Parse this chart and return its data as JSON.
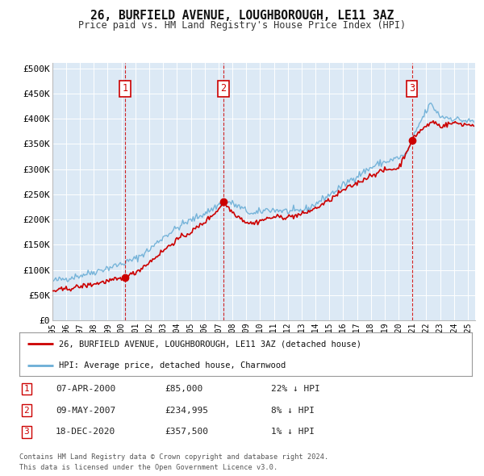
{
  "title": "26, BURFIELD AVENUE, LOUGHBOROUGH, LE11 3AZ",
  "subtitle": "Price paid vs. HM Land Registry's House Price Index (HPI)",
  "yticks": [
    0,
    50000,
    100000,
    150000,
    200000,
    250000,
    300000,
    350000,
    400000,
    450000,
    500000
  ],
  "ytick_labels": [
    "£0",
    "£50K",
    "£100K",
    "£150K",
    "£200K",
    "£250K",
    "£300K",
    "£350K",
    "£400K",
    "£450K",
    "£500K"
  ],
  "xmin": 1995.0,
  "xmax": 2025.5,
  "ymin": 0,
  "ymax": 510000,
  "background_plot": "#dce9f5",
  "background_fig": "#ffffff",
  "grid_color": "#ffffff",
  "hpi_color": "#6baed6",
  "price_color": "#cc0000",
  "annotation_box_color": "#cc0000",
  "dashed_line_color_sale": "#cc0000",
  "dashed_line_color_nosale": "#aaaacc",
  "legend_house_label": "26, BURFIELD AVENUE, LOUGHBOROUGH, LE11 3AZ (detached house)",
  "legend_hpi_label": "HPI: Average price, detached house, Charnwood",
  "transactions": [
    {
      "num": 1,
      "date": "07-APR-2000",
      "price": 85000,
      "pct": "22%",
      "dir": "↓",
      "year": 2000.27
    },
    {
      "num": 2,
      "date": "09-MAY-2007",
      "price": 234995,
      "pct": "8%",
      "dir": "↓",
      "year": 2007.36
    },
    {
      "num": 3,
      "date": "18-DEC-2020",
      "price": 357500,
      "pct": "1%",
      "dir": "↓",
      "year": 2020.96
    }
  ],
  "footer1": "Contains HM Land Registry data © Crown copyright and database right 2024.",
  "footer2": "This data is licensed under the Open Government Licence v3.0.",
  "xtick_years": [
    1995,
    1996,
    1997,
    1998,
    1999,
    2000,
    2001,
    2002,
    2003,
    2004,
    2005,
    2006,
    2007,
    2008,
    2009,
    2010,
    2011,
    2012,
    2013,
    2014,
    2015,
    2016,
    2017,
    2018,
    2019,
    2020,
    2021,
    2022,
    2023,
    2024,
    2025
  ]
}
